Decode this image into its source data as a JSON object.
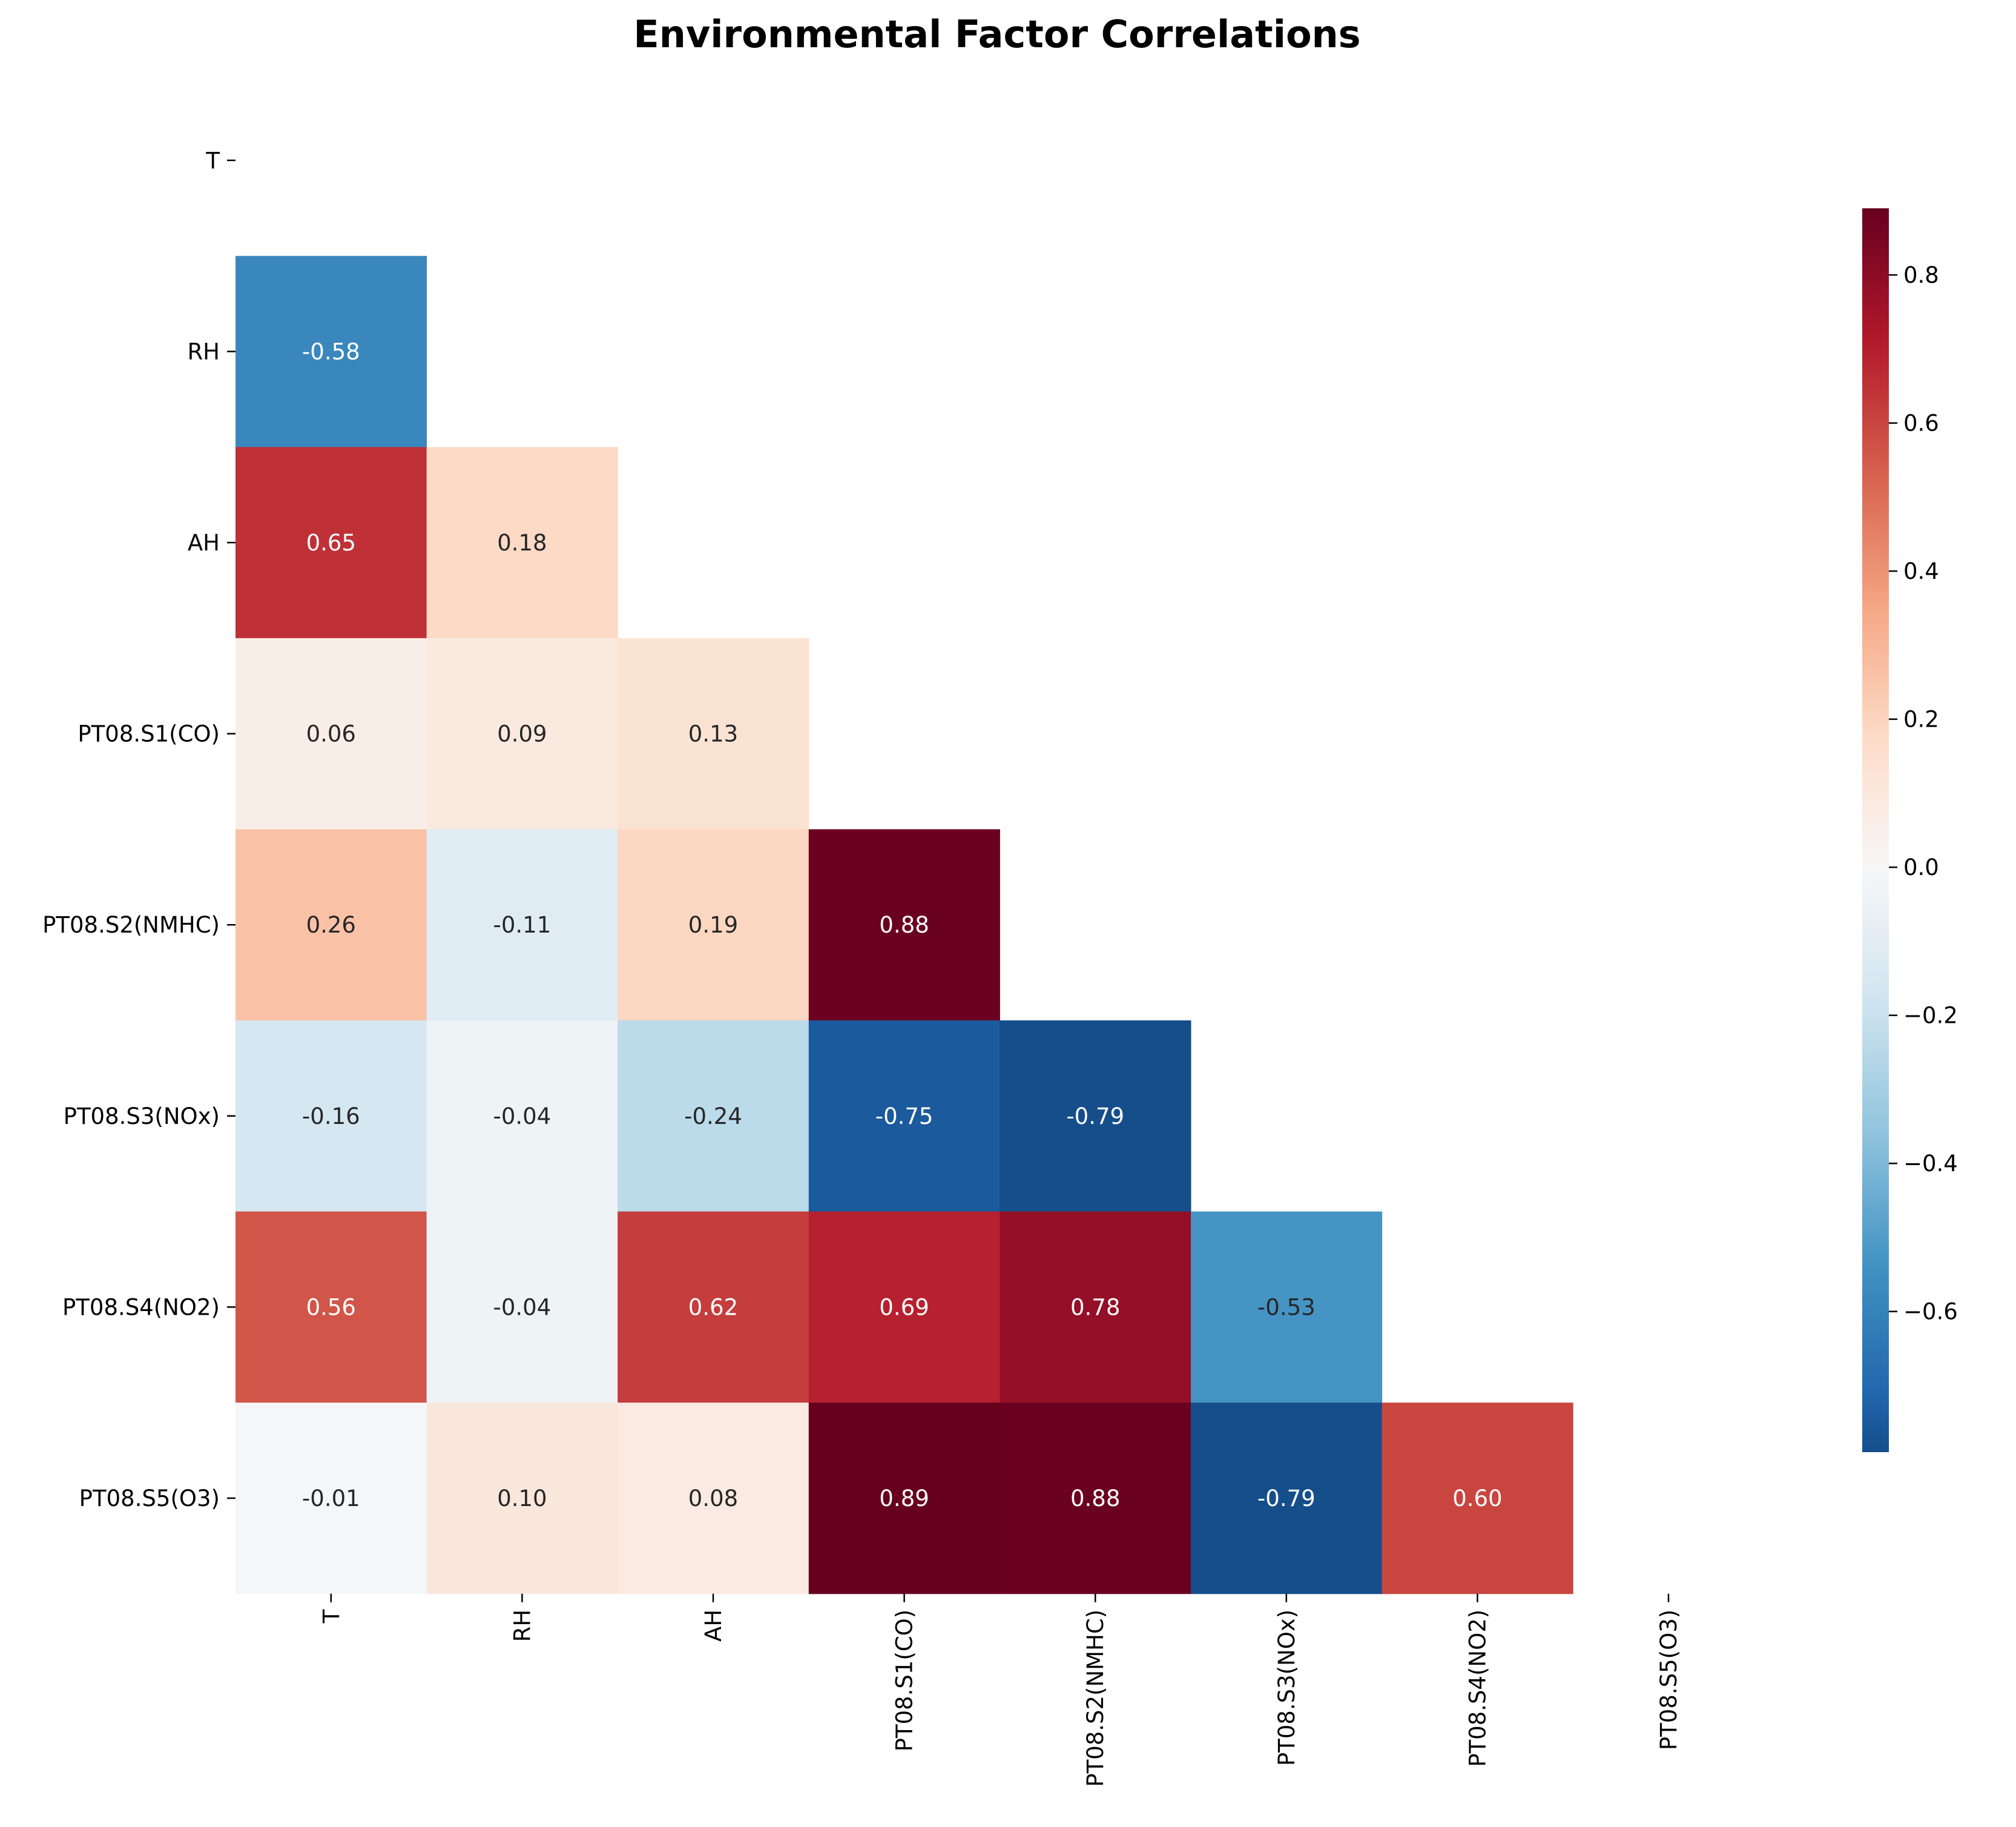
{
  "chart_data": {
    "type": "heatmap",
    "title": "Environmental Factor Correlations",
    "variables": [
      "T",
      "RH",
      "AH",
      "PT08.S1(CO)",
      "PT08.S2(NMHC)",
      "PT08.S3(NOx)",
      "PT08.S4(NO2)",
      "PT08.S5(O3)"
    ],
    "mask": "upper triangle including diagonal",
    "cells": [
      {
        "row": "RH",
        "col": "T",
        "value": -0.58,
        "label": "-0.58"
      },
      {
        "row": "AH",
        "col": "T",
        "value": 0.65,
        "label": "0.65"
      },
      {
        "row": "AH",
        "col": "RH",
        "value": 0.18,
        "label": "0.18"
      },
      {
        "row": "PT08.S1(CO)",
        "col": "T",
        "value": 0.06,
        "label": "0.06"
      },
      {
        "row": "PT08.S1(CO)",
        "col": "RH",
        "value": 0.09,
        "label": "0.09"
      },
      {
        "row": "PT08.S1(CO)",
        "col": "AH",
        "value": 0.13,
        "label": "0.13"
      },
      {
        "row": "PT08.S2(NMHC)",
        "col": "T",
        "value": 0.26,
        "label": "0.26"
      },
      {
        "row": "PT08.S2(NMHC)",
        "col": "RH",
        "value": -0.11,
        "label": "-0.11"
      },
      {
        "row": "PT08.S2(NMHC)",
        "col": "AH",
        "value": 0.19,
        "label": "0.19"
      },
      {
        "row": "PT08.S2(NMHC)",
        "col": "PT08.S1(CO)",
        "value": 0.88,
        "label": "0.88"
      },
      {
        "row": "PT08.S3(NOx)",
        "col": "T",
        "value": -0.16,
        "label": "-0.16"
      },
      {
        "row": "PT08.S3(NOx)",
        "col": "RH",
        "value": -0.04,
        "label": "-0.04"
      },
      {
        "row": "PT08.S3(NOx)",
        "col": "AH",
        "value": -0.24,
        "label": "-0.24"
      },
      {
        "row": "PT08.S3(NOx)",
        "col": "PT08.S1(CO)",
        "value": -0.75,
        "label": "-0.75"
      },
      {
        "row": "PT08.S3(NOx)",
        "col": "PT08.S2(NMHC)",
        "value": -0.79,
        "label": "-0.79"
      },
      {
        "row": "PT08.S4(NO2)",
        "col": "T",
        "value": 0.56,
        "label": "0.56"
      },
      {
        "row": "PT08.S4(NO2)",
        "col": "RH",
        "value": -0.04,
        "label": "-0.04"
      },
      {
        "row": "PT08.S4(NO2)",
        "col": "AH",
        "value": 0.62,
        "label": "0.62"
      },
      {
        "row": "PT08.S4(NO2)",
        "col": "PT08.S1(CO)",
        "value": 0.69,
        "label": "0.69"
      },
      {
        "row": "PT08.S4(NO2)",
        "col": "PT08.S2(NMHC)",
        "value": 0.78,
        "label": "0.78"
      },
      {
        "row": "PT08.S4(NO2)",
        "col": "PT08.S3(NOx)",
        "value": -0.53,
        "label": "-0.53"
      },
      {
        "row": "PT08.S5(O3)",
        "col": "T",
        "value": -0.01,
        "label": "-0.01"
      },
      {
        "row": "PT08.S5(O3)",
        "col": "RH",
        "value": 0.1,
        "label": "0.10"
      },
      {
        "row": "PT08.S5(O3)",
        "col": "AH",
        "value": 0.08,
        "label": "0.08"
      },
      {
        "row": "PT08.S5(O3)",
        "col": "PT08.S1(CO)",
        "value": 0.89,
        "label": "0.89"
      },
      {
        "row": "PT08.S5(O3)",
        "col": "PT08.S2(NMHC)",
        "value": 0.88,
        "label": "0.88"
      },
      {
        "row": "PT08.S5(O3)",
        "col": "PT08.S3(NOx)",
        "value": -0.79,
        "label": "-0.79"
      },
      {
        "row": "PT08.S5(O3)",
        "col": "PT08.S4(NO2)",
        "value": 0.6,
        "label": "0.60"
      }
    ],
    "colorbar": {
      "colormap": "RdBu_r",
      "range": [
        -0.79,
        0.89
      ],
      "ticks": [
        -0.6,
        -0.4,
        -0.2,
        0.0,
        0.2,
        0.4,
        0.6,
        0.8
      ],
      "tick_labels": [
        "−0.6",
        "−0.4",
        "−0.2",
        "0.0",
        "0.2",
        "0.4",
        "0.6",
        "0.8"
      ],
      "position": "right"
    },
    "grid": false
  }
}
